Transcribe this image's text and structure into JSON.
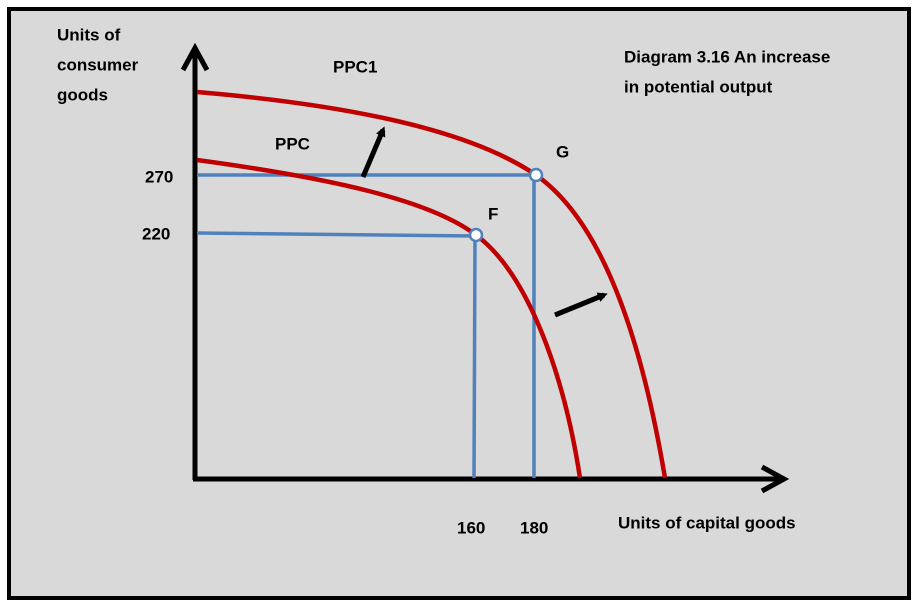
{
  "title": [
    "Diagram 3.16  An increase",
    "in potential output"
  ],
  "y_axis_label": [
    "Units of",
    "consumer",
    "goods"
  ],
  "x_axis_label": "Units of capital goods",
  "curves": [
    {
      "label": "PPC1"
    },
    {
      "label": "PPC"
    }
  ],
  "points": [
    {
      "label": "G",
      "x_label": "180",
      "y_label": "270"
    },
    {
      "label": "F",
      "x_label": "160",
      "y_label": "220"
    }
  ]
}
